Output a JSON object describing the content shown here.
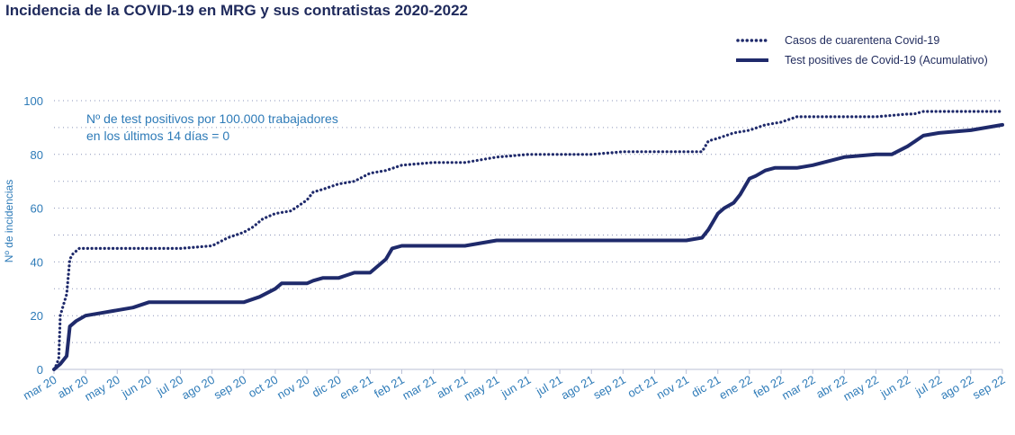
{
  "chart_data": {
    "type": "line",
    "title": "Incidencia de la COVID-19 en MRG y sus contratistas 2020-2022",
    "ylabel": "Nº de incidencias",
    "xlabel": "",
    "ylim": [
      0,
      100
    ],
    "yticks": [
      0,
      20,
      40,
      60,
      80,
      100
    ],
    "x_tick_labels": [
      "mar 20",
      "abr 20",
      "may 20",
      "jun 20",
      "jul 20",
      "ago 20",
      "sep 20",
      "oct 20",
      "nov 20",
      "dic 20",
      "ene 21",
      "feb 21",
      "mar 21",
      "abr 21",
      "may 21",
      "jun 21",
      "jul 21",
      "ago 21",
      "sep 21",
      "oct 21",
      "nov 21",
      "dic 21",
      "ene 22",
      "feb 22",
      "mar 22",
      "abr 22",
      "may 22",
      "jun 22",
      "jul 22",
      "ago 22",
      "sep 22"
    ],
    "grid": "horizontal dotted",
    "legend_position": "top-right",
    "annotation": [
      "Nº de test positivos por 100.000 trabajadores",
      "en los últimos 14 días = 0"
    ],
    "series": [
      {
        "name": "Casos de cuarentena Covid-19",
        "style": "dotted",
        "color": "#1f2a6b",
        "x": [
          0,
          0.05,
          0.15,
          0.2,
          0.3,
          0.4,
          0.5,
          0.6,
          0.8,
          1.0,
          2,
          3,
          4,
          5,
          5.5,
          6,
          6.3,
          6.6,
          7,
          7.5,
          8,
          8.2,
          8.5,
          9,
          9.5,
          10,
          10.5,
          11,
          12,
          13,
          13.5,
          14,
          15,
          16,
          17,
          18,
          19,
          20.5,
          20.7,
          21,
          21.5,
          22,
          22.5,
          23,
          23.5,
          24,
          25,
          26,
          27,
          27.2,
          27.5,
          28,
          29,
          30
        ],
        "y": [
          0,
          1,
          4,
          20,
          24,
          28,
          41,
          43,
          45,
          45,
          45,
          45,
          45,
          46,
          49,
          51,
          53,
          56,
          58,
          59,
          63,
          66,
          67,
          69,
          70,
          73,
          74,
          76,
          77,
          77,
          78,
          79,
          80,
          80,
          80,
          81,
          81,
          81,
          85,
          86,
          88,
          89,
          91,
          92,
          94,
          94,
          94,
          94,
          95,
          95,
          96,
          96,
          96,
          96
        ]
      },
      {
        "name": "Test positives de Covid-19 (Acumulativo)",
        "style": "solid",
        "color": "#1f2a6b",
        "x": [
          0,
          0.2,
          0.4,
          0.5,
          0.6,
          0.7,
          1.0,
          1.5,
          2.5,
          3,
          4,
          5,
          6,
          6.5,
          7,
          7.2,
          8,
          8.2,
          8.5,
          9,
          9.5,
          10,
          10.5,
          10.7,
          11,
          12,
          13,
          13.5,
          14,
          15,
          16,
          17,
          18,
          19,
          20,
          20.5,
          20.7,
          21,
          21.2,
          21.5,
          21.7,
          22,
          22.2,
          22.5,
          22.8,
          23,
          23.5,
          24,
          25,
          26,
          26.5,
          27,
          27.5,
          28,
          29,
          29.5,
          30
        ],
        "y": [
          0,
          2,
          5,
          16,
          17,
          18,
          20,
          21,
          23,
          25,
          25,
          25,
          25,
          27,
          30,
          32,
          32,
          33,
          34,
          34,
          36,
          36,
          41,
          45,
          46,
          46,
          46,
          47,
          48,
          48,
          48,
          48,
          48,
          48,
          48,
          49,
          52,
          58,
          60,
          62,
          65,
          71,
          72,
          74,
          75,
          75,
          75,
          76,
          79,
          80,
          80,
          83,
          87,
          88,
          89,
          90,
          91
        ]
      }
    ]
  }
}
